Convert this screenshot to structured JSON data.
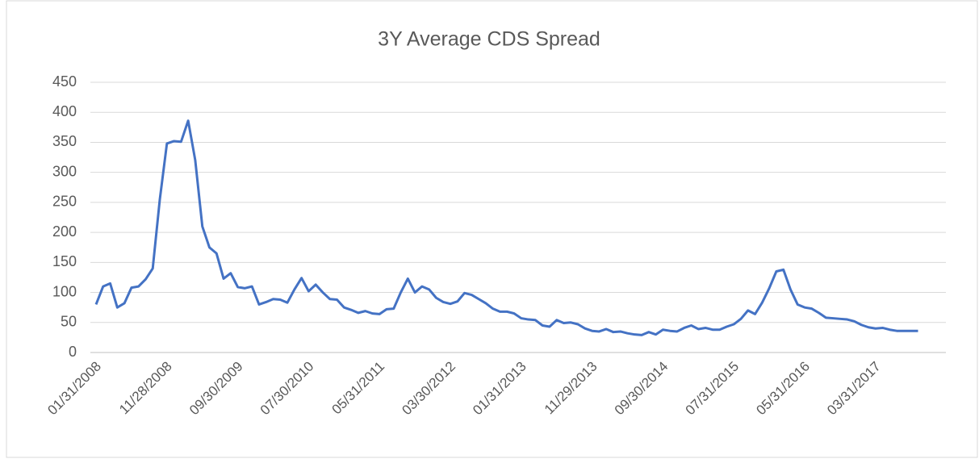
{
  "chart_data": {
    "type": "line",
    "title": "3Y Average CDS Spread",
    "categories": [
      "01/31/2008",
      null,
      null,
      null,
      null,
      null,
      null,
      null,
      null,
      null,
      "11/28/2008",
      null,
      null,
      null,
      null,
      null,
      null,
      null,
      null,
      null,
      "09/30/2009",
      null,
      null,
      null,
      null,
      null,
      null,
      null,
      null,
      null,
      "07/30/2010",
      null,
      null,
      null,
      null,
      null,
      null,
      null,
      null,
      null,
      "05/31/2011",
      null,
      null,
      null,
      null,
      null,
      null,
      null,
      null,
      null,
      "03/30/2012",
      null,
      null,
      null,
      null,
      null,
      null,
      null,
      null,
      null,
      "01/31/2013",
      null,
      null,
      null,
      null,
      null,
      null,
      null,
      null,
      null,
      "11/29/2013",
      null,
      null,
      null,
      null,
      null,
      null,
      null,
      null,
      null,
      "09/30/2014",
      null,
      null,
      null,
      null,
      null,
      null,
      null,
      null,
      null,
      "07/31/2015",
      null,
      null,
      null,
      null,
      null,
      null,
      null,
      null,
      null,
      "05/31/2016",
      null,
      null,
      null,
      null,
      null,
      null,
      null,
      null,
      null,
      "03/31/2017",
      null,
      null,
      null,
      null,
      null,
      null
    ],
    "series": [
      {
        "name": "3Y Average CDS Spread",
        "color": "#4472c4",
        "values": [
          80,
          110,
          115,
          75,
          82,
          108,
          110,
          122,
          140,
          255,
          348,
          352,
          351,
          386,
          320,
          210,
          175,
          165,
          123,
          132,
          109,
          107,
          110,
          80,
          84,
          89,
          88,
          83,
          105,
          124,
          102,
          113,
          100,
          89,
          88,
          75,
          71,
          66,
          69,
          65,
          64,
          72,
          73,
          100,
          123,
          100,
          110,
          105,
          91,
          84,
          81,
          85,
          99,
          96,
          89,
          82,
          73,
          68,
          68,
          65,
          57,
          55,
          54,
          45,
          43,
          54,
          49,
          50,
          47,
          40,
          36,
          35,
          39,
          34,
          35,
          32,
          30,
          29,
          34,
          30,
          38,
          36,
          35,
          41,
          45,
          39,
          41,
          38,
          38,
          43,
          47,
          56,
          70,
          64,
          83,
          107,
          135,
          138,
          105,
          80,
          75,
          73,
          66,
          58,
          57,
          56,
          55,
          52,
          46,
          42,
          40,
          41,
          38,
          36,
          36,
          36,
          36
        ]
      }
    ],
    "ylim": [
      0,
      450
    ],
    "yticks": [
      0,
      50,
      100,
      150,
      200,
      250,
      300,
      350,
      400,
      450
    ],
    "grid": true
  }
}
